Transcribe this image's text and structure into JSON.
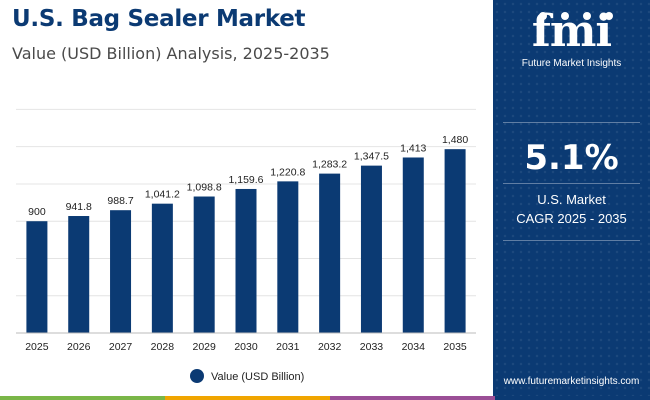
{
  "header": {
    "title": "U.S. Bag Sealer Market",
    "subtitle": "Value (USD Billion) Analysis, 2025-2035"
  },
  "chart_data": {
    "type": "bar",
    "categories": [
      "2025",
      "2026",
      "2027",
      "2028",
      "2029",
      "2030",
      "2031",
      "2032",
      "2033",
      "2034",
      "2035"
    ],
    "series": [
      {
        "name": "Value (USD Billion)",
        "values": [
          900,
          941.8,
          988.7,
          1041.2,
          1098.8,
          1159.6,
          1220.8,
          1283.2,
          1347.5,
          1413,
          1480
        ],
        "labels": [
          "900",
          "941.8",
          "988.7",
          "1,041.2",
          "1,098.8",
          "1,159.6",
          "1,220.8",
          "1,283.2",
          "1,347.5",
          "1,413",
          "1,480"
        ]
      }
    ],
    "title": "U.S. Bag Sealer Market",
    "xlabel": "",
    "ylabel": "",
    "ylim": [
      0,
      1900
    ],
    "grid": true,
    "legend": "bottom-center"
  },
  "legend": {
    "label": "Value (USD Billion)"
  },
  "sidebar": {
    "logo_text": "fmi",
    "logo_caption": "Future Market Insights",
    "cagr_value": "5.1%",
    "cagr_line1": "U.S. Market",
    "cagr_line2": "CAGR 2025 - 2035",
    "website": "www.futuremarketinsights.com"
  },
  "colors": {
    "bar": "#0b3a73",
    "sidebar": "#0b3a73",
    "title": "#0b3a73",
    "accent_bars": [
      "#7ab648",
      "#f0a500",
      "#9b4f96",
      "#0b3a73"
    ]
  }
}
